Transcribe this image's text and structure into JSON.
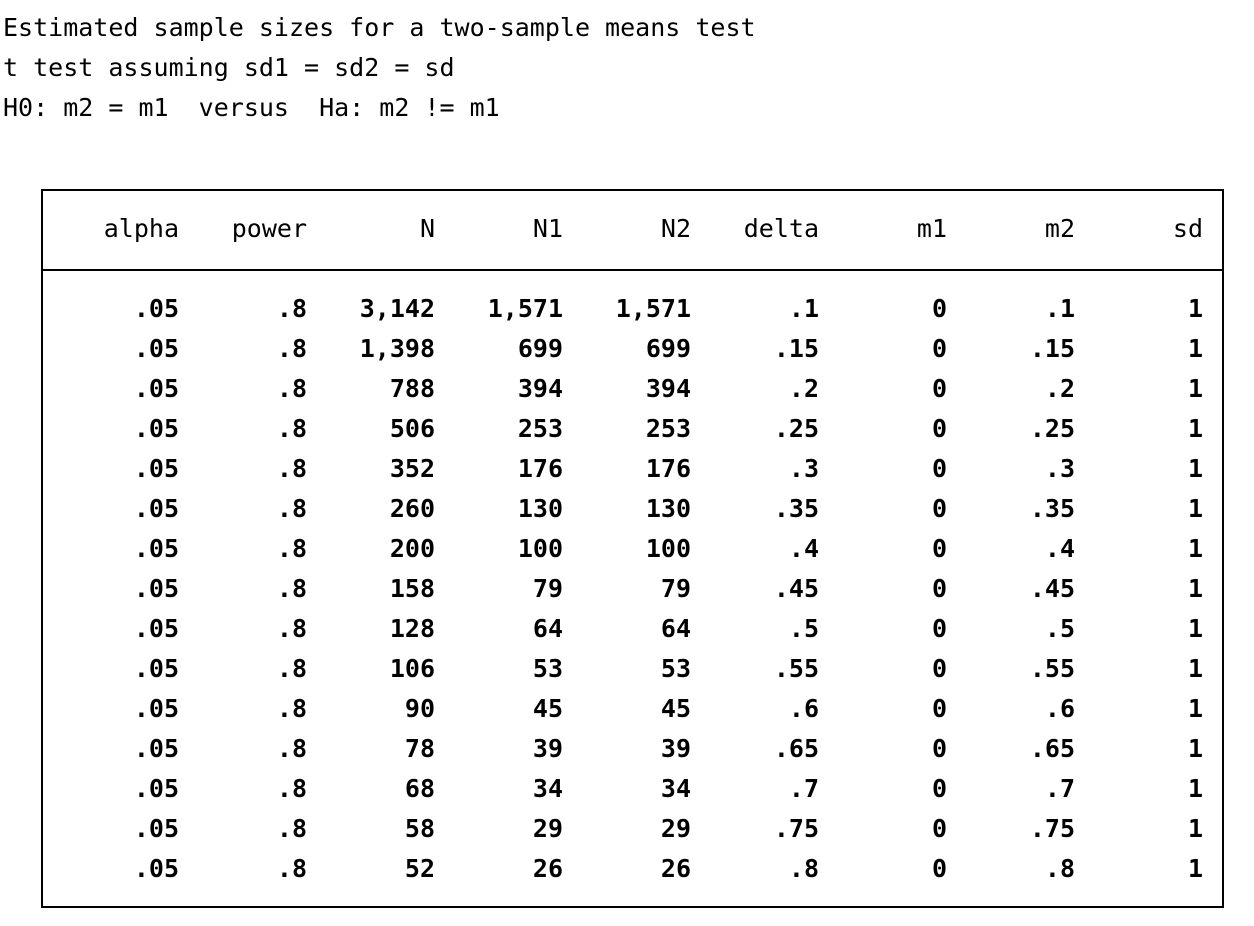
{
  "header": {
    "line1": "Estimated sample sizes for a two-sample means test",
    "line2": "t test assuming sd1 = sd2 = sd",
    "line3": "H0: m2 = m1  versus  Ha: m2 != m1"
  },
  "table": {
    "columns": [
      "alpha",
      "power",
      "N",
      "N1",
      "N2",
      "delta",
      "m1",
      "m2",
      "sd"
    ],
    "rows": [
      [
        ".05",
        ".8",
        "3,142",
        "1,571",
        "1,571",
        ".1",
        "0",
        ".1",
        "1"
      ],
      [
        ".05",
        ".8",
        "1,398",
        "699",
        "699",
        ".15",
        "0",
        ".15",
        "1"
      ],
      [
        ".05",
        ".8",
        "788",
        "394",
        "394",
        ".2",
        "0",
        ".2",
        "1"
      ],
      [
        ".05",
        ".8",
        "506",
        "253",
        "253",
        ".25",
        "0",
        ".25",
        "1"
      ],
      [
        ".05",
        ".8",
        "352",
        "176",
        "176",
        ".3",
        "0",
        ".3",
        "1"
      ],
      [
        ".05",
        ".8",
        "260",
        "130",
        "130",
        ".35",
        "0",
        ".35",
        "1"
      ],
      [
        ".05",
        ".8",
        "200",
        "100",
        "100",
        ".4",
        "0",
        ".4",
        "1"
      ],
      [
        ".05",
        ".8",
        "158",
        "79",
        "79",
        ".45",
        "0",
        ".45",
        "1"
      ],
      [
        ".05",
        ".8",
        "128",
        "64",
        "64",
        ".5",
        "0",
        ".5",
        "1"
      ],
      [
        ".05",
        ".8",
        "106",
        "53",
        "53",
        ".55",
        "0",
        ".55",
        "1"
      ],
      [
        ".05",
        ".8",
        "90",
        "45",
        "45",
        ".6",
        "0",
        ".6",
        "1"
      ],
      [
        ".05",
        ".8",
        "78",
        "39",
        "39",
        ".65",
        "0",
        ".65",
        "1"
      ],
      [
        ".05",
        ".8",
        "68",
        "34",
        "34",
        ".7",
        "0",
        ".7",
        "1"
      ],
      [
        ".05",
        ".8",
        "58",
        "29",
        "29",
        ".75",
        "0",
        ".75",
        "1"
      ],
      [
        ".05",
        ".8",
        "52",
        "26",
        "26",
        ".8",
        "0",
        ".8",
        "1"
      ]
    ]
  }
}
